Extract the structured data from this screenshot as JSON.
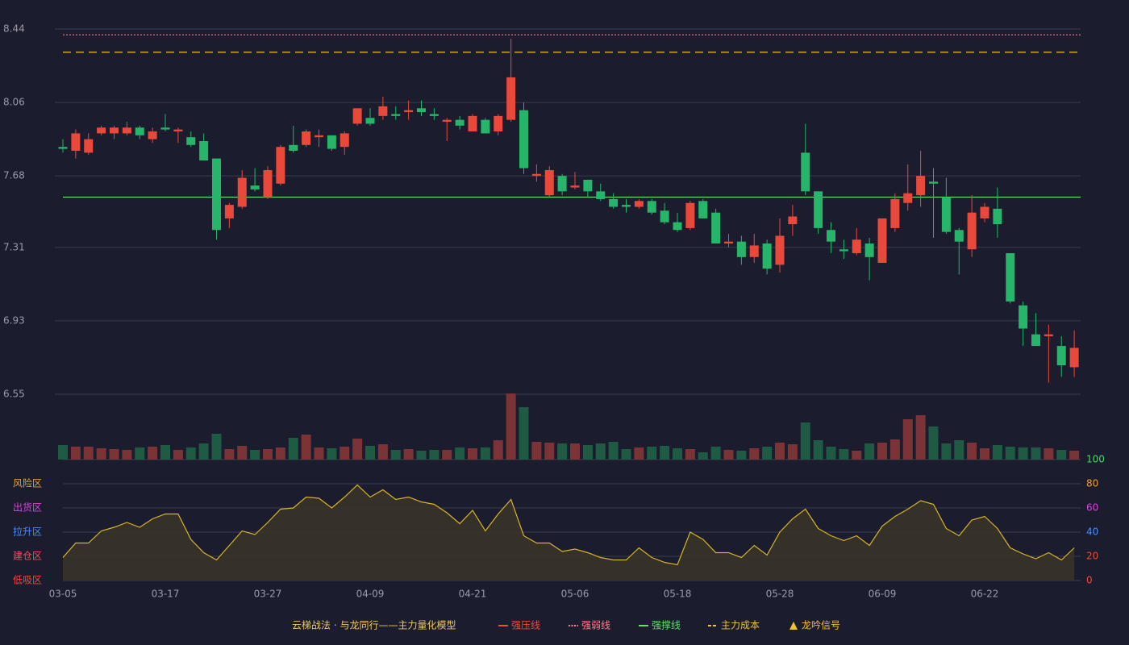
{
  "chart_data": {
    "type": "candlestick",
    "categories": [
      "03-05",
      null,
      null,
      null,
      null,
      null,
      null,
      null,
      "03-17",
      null,
      null,
      null,
      null,
      null,
      null,
      null,
      "03-27",
      null,
      null,
      null,
      null,
      null,
      null,
      null,
      "04-09",
      null,
      null,
      null,
      null,
      null,
      null,
      null,
      "04-21",
      null,
      null,
      null,
      null,
      null,
      null,
      null,
      "05-06",
      null,
      null,
      null,
      null,
      null,
      null,
      null,
      "05-18",
      null,
      null,
      null,
      null,
      null,
      null,
      null,
      "05-28",
      null,
      null,
      null,
      null,
      null,
      null,
      null,
      "06-09",
      null,
      null,
      null,
      null,
      null,
      null,
      null,
      "06-22",
      null,
      null,
      null,
      null,
      null,
      null,
      null
    ],
    "open": [
      7.83,
      7.81,
      7.8,
      7.9,
      7.9,
      7.9,
      7.93,
      7.87,
      7.93,
      7.91,
      7.88,
      7.86,
      7.77,
      7.46,
      7.52,
      7.63,
      7.57,
      7.64,
      7.84,
      7.84,
      7.88,
      7.89,
      7.83,
      7.95,
      7.98,
      7.99,
      8.0,
      8.01,
      8.03,
      8.0,
      7.96,
      7.97,
      7.91,
      7.97,
      7.91,
      7.97,
      8.02,
      7.68,
      7.58,
      7.68,
      7.62,
      7.66,
      7.6,
      7.56,
      7.53,
      7.52,
      7.55,
      7.5,
      7.44,
      7.41,
      7.55,
      7.49,
      7.33,
      7.34,
      7.26,
      7.33,
      7.22,
      7.43,
      7.8,
      7.6,
      7.4,
      7.3,
      7.28,
      7.33,
      7.23,
      7.41,
      7.54,
      7.58,
      7.65,
      7.57,
      7.4,
      7.3,
      7.46,
      7.51,
      7.28,
      7.01,
      6.86,
      6.85,
      6.8,
      6.69
    ],
    "close": [
      7.82,
      7.9,
      7.87,
      7.93,
      7.93,
      7.93,
      7.89,
      7.91,
      7.92,
      7.92,
      7.84,
      7.76,
      7.4,
      7.53,
      7.67,
      7.61,
      7.71,
      7.83,
      7.81,
      7.91,
      7.89,
      7.82,
      7.9,
      8.03,
      7.95,
      8.04,
      7.99,
      8.02,
      8.01,
      7.99,
      7.97,
      7.94,
      7.99,
      7.9,
      7.99,
      8.19,
      7.72,
      7.69,
      7.71,
      7.6,
      7.63,
      7.6,
      7.56,
      7.52,
      7.52,
      7.55,
      7.49,
      7.44,
      7.4,
      7.54,
      7.46,
      7.33,
      7.34,
      7.26,
      7.32,
      7.2,
      7.37,
      7.47,
      7.6,
      7.41,
      7.34,
      7.29,
      7.35,
      7.26,
      7.46,
      7.56,
      7.59,
      7.68,
      7.64,
      7.39,
      7.34,
      7.49,
      7.52,
      7.43,
      7.03,
      6.89,
      6.8,
      6.86,
      6.7,
      6.79
    ],
    "high": [
      7.87,
      7.92,
      7.9,
      7.94,
      7.94,
      7.96,
      7.94,
      7.93,
      8.0,
      7.93,
      7.91,
      7.9,
      7.77,
      7.54,
      7.71,
      7.72,
      7.73,
      7.84,
      7.94,
      7.92,
      7.92,
      7.89,
      7.91,
      8.03,
      8.03,
      8.09,
      8.04,
      8.07,
      8.07,
      8.03,
      7.98,
      7.99,
      8.0,
      7.98,
      8.0,
      8.39,
      8.06,
      7.74,
      7.73,
      7.69,
      7.7,
      7.66,
      7.64,
      7.59,
      7.56,
      7.56,
      7.56,
      7.54,
      7.49,
      7.55,
      7.56,
      7.51,
      7.38,
      7.37,
      7.38,
      7.35,
      7.46,
      7.53,
      7.95,
      7.6,
      7.44,
      7.35,
      7.41,
      7.36,
      7.46,
      7.59,
      7.74,
      7.81,
      7.72,
      7.67,
      7.41,
      7.58,
      7.54,
      7.62,
      7.28,
      7.03,
      6.97,
      6.91,
      6.85,
      6.88
    ],
    "low": [
      7.8,
      7.77,
      7.79,
      7.89,
      7.87,
      7.89,
      7.87,
      7.85,
      7.91,
      7.85,
      7.83,
      7.76,
      7.35,
      7.41,
      7.51,
      7.6,
      7.56,
      7.63,
      7.8,
      7.83,
      7.83,
      7.81,
      7.79,
      7.94,
      7.94,
      7.97,
      7.97,
      7.97,
      7.99,
      7.97,
      7.86,
      7.92,
      7.91,
      7.9,
      7.89,
      7.96,
      7.69,
      7.65,
      7.57,
      7.58,
      7.61,
      7.57,
      7.55,
      7.51,
      7.49,
      7.51,
      7.48,
      7.43,
      7.39,
      7.4,
      7.46,
      7.33,
      7.31,
      7.22,
      7.23,
      7.17,
      7.18,
      7.37,
      7.58,
      7.38,
      7.28,
      7.25,
      7.27,
      7.14,
      7.23,
      7.39,
      7.5,
      7.52,
      7.36,
      7.38,
      7.17,
      7.26,
      7.44,
      7.36,
      7.02,
      6.8,
      6.8,
      6.61,
      6.64,
      6.64
    ],
    "volume": [
      18,
      16,
      16,
      14,
      13,
      12,
      15,
      16,
      18,
      12,
      15,
      20,
      32,
      13,
      17,
      12,
      13,
      15,
      27,
      31,
      15,
      14,
      16,
      26,
      17,
      19,
      12,
      13,
      11,
      12,
      12,
      15,
      14,
      15,
      24,
      82,
      65,
      22,
      21,
      20,
      20,
      18,
      20,
      22,
      13,
      15,
      16,
      17,
      14,
      13,
      9,
      16,
      12,
      11,
      14,
      16,
      21,
      19,
      46,
      24,
      16,
      13,
      11,
      20,
      21,
      25,
      50,
      55,
      41,
      20,
      24,
      21,
      14,
      18,
      16,
      15,
      15,
      14,
      12,
      11
    ],
    "up_color": "#e8493b",
    "down_color": "#26b569",
    "volume_up_color": "#7a3337",
    "volume_down_color": "#1f5a44",
    "ylim": [
      6.55,
      8.44
    ],
    "yticks": [
      8.44,
      8.06,
      7.68,
      7.31,
      6.93,
      6.55
    ],
    "grid": true,
    "lines": [
      {
        "name": "强压线",
        "color": "#f04a3e",
        "style": "solid"
      },
      {
        "name": "强弱线",
        "color": "#ff7f8a",
        "style": "dotted",
        "value": 8.41
      },
      {
        "name": "强撑线",
        "color": "#5ee06a",
        "style": "solid",
        "value": 7.57
      },
      {
        "name": "主力成本",
        "color": "#f2c230",
        "style": "dashed",
        "value": 8.32
      }
    ],
    "signal": {
      "name": "龙吟信号",
      "color": "#f2c230",
      "marker": "triangle"
    },
    "legend_title": "云梯战法 · 与龙同行——主力量化模型",
    "legend_title_color": "#f0c860",
    "indicator": {
      "values": [
        19,
        31,
        31,
        41,
        44,
        48,
        44,
        51,
        55,
        55,
        34,
        23,
        17,
        29,
        41,
        38,
        48,
        59,
        60,
        69,
        68,
        60,
        69,
        79,
        69,
        75,
        67,
        69,
        65,
        63,
        56,
        47,
        58,
        41,
        55,
        67,
        37,
        31,
        31,
        24,
        26,
        23,
        19,
        17,
        17,
        27,
        19,
        15,
        13,
        40,
        34,
        23,
        23,
        19,
        29,
        21,
        40,
        51,
        59,
        43,
        37,
        33,
        37,
        29,
        45,
        53,
        59,
        66,
        63,
        43,
        37,
        50,
        53,
        43,
        27,
        22,
        18,
        23,
        17,
        27
      ],
      "color": "#d8b42a",
      "fill": "#3a3428",
      "ylim": [
        0,
        100
      ],
      "yticks": [
        0,
        20,
        40,
        60,
        80,
        100
      ],
      "ytick_colors": [
        "#f04a3e",
        "#f04a3e",
        "#4a8cff",
        "#e040e0",
        "#f0a030",
        "#4cd964"
      ],
      "zones": [
        {
          "value": 80,
          "label": "风险区",
          "color": "#f0a030"
        },
        {
          "value": 60,
          "label": "出货区",
          "color": "#e040e0"
        },
        {
          "value": 40,
          "label": "拉升区",
          "color": "#4a8cff"
        },
        {
          "value": 20,
          "label": "建仓区",
          "color": "#f05060"
        },
        {
          "value": 0,
          "label": "低吸区",
          "color": "#f04a3e"
        }
      ]
    }
  }
}
